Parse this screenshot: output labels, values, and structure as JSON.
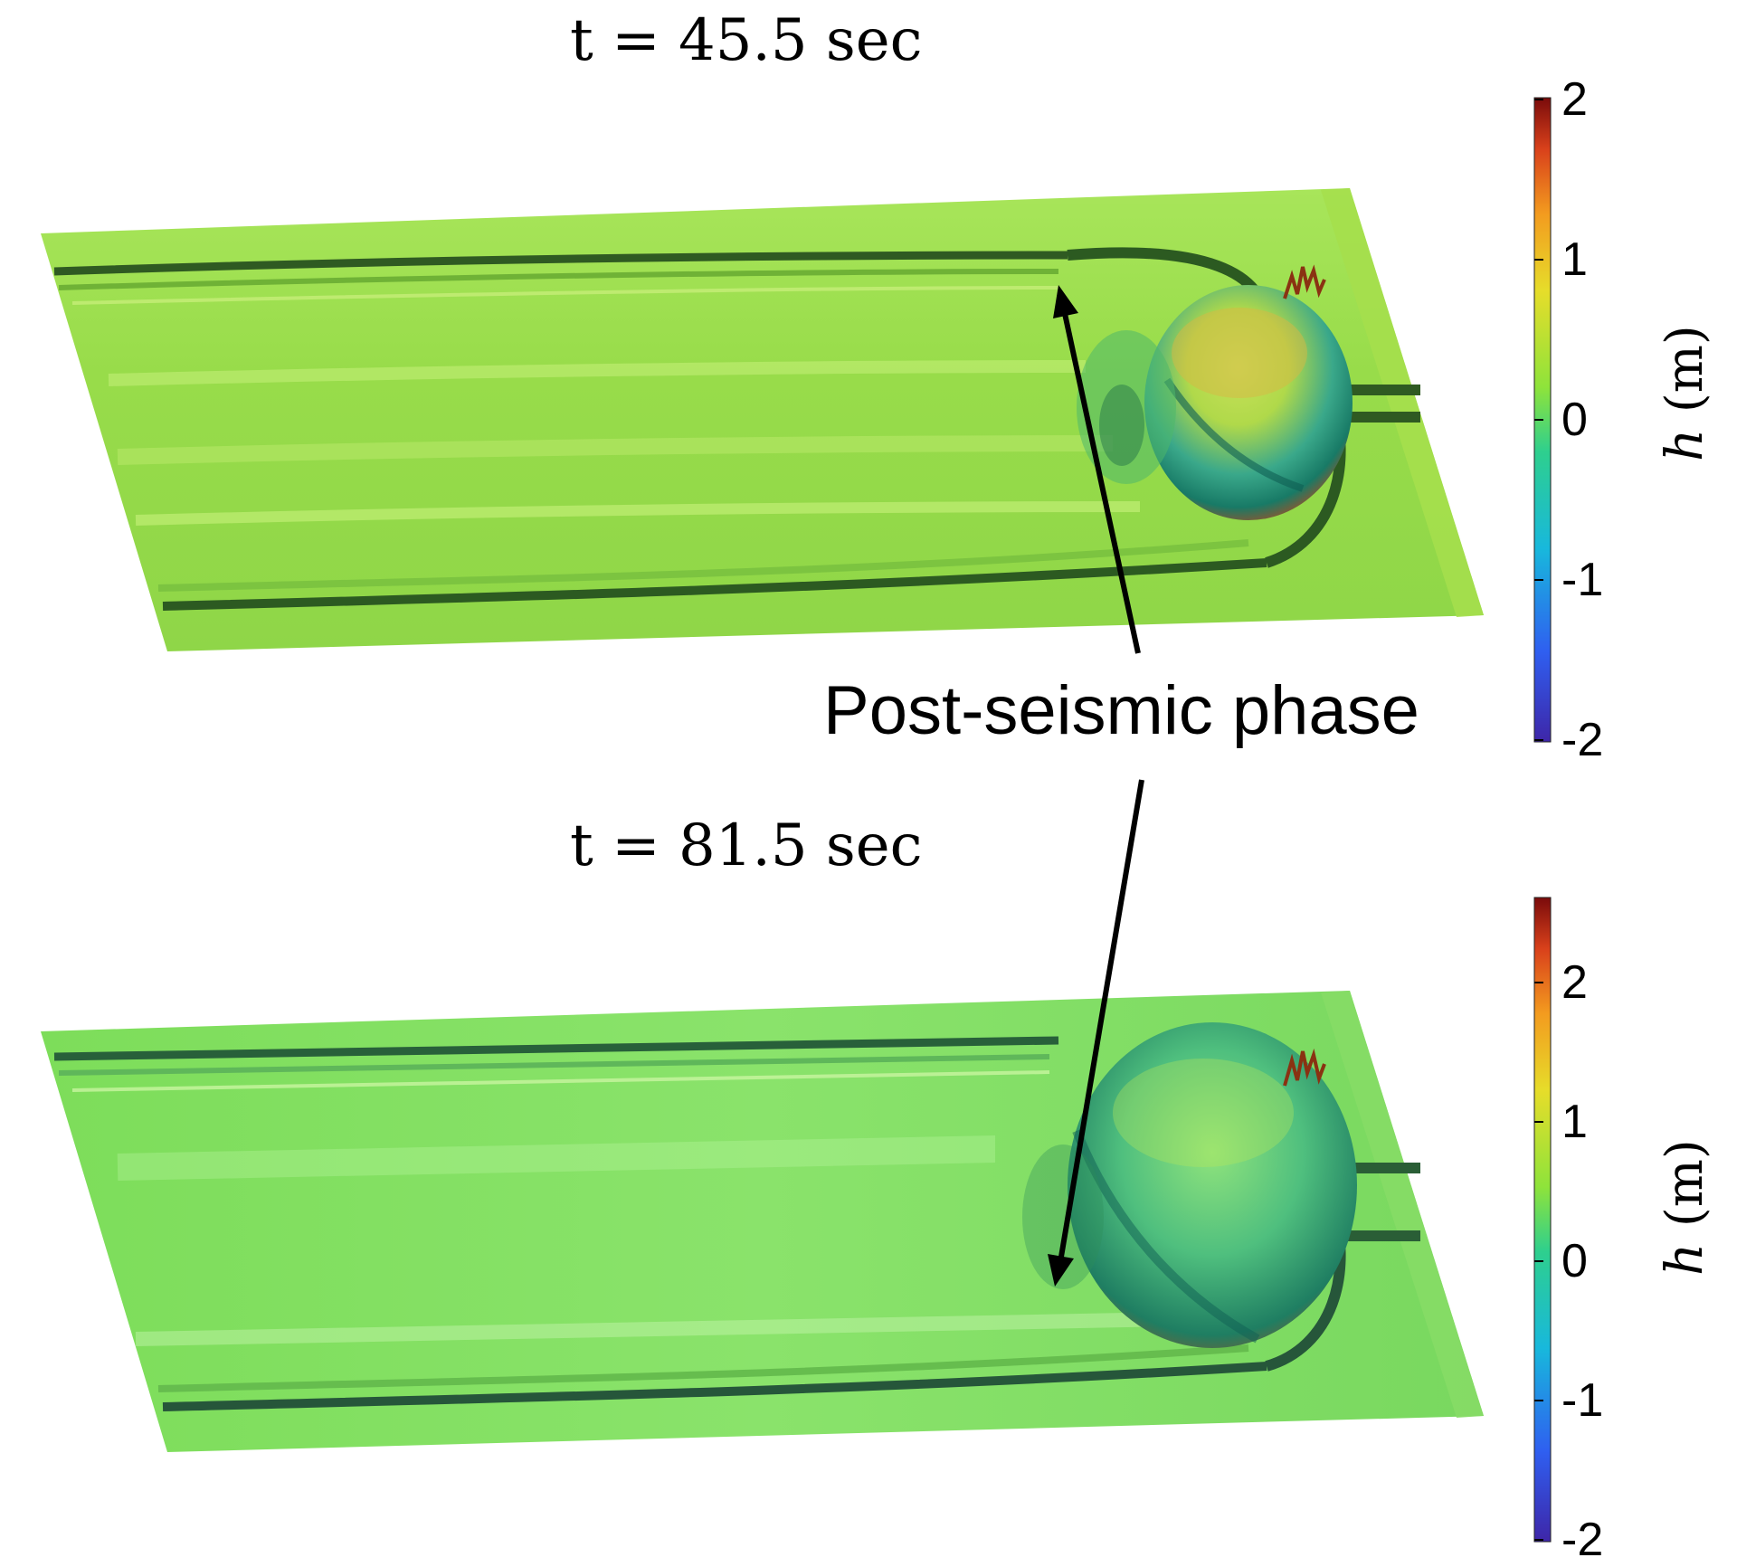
{
  "panels": [
    {
      "time_label": "t = 45.5 sec",
      "colorbar": {
        "title_symbol": "h",
        "title_unit": "(m)",
        "range": [
          -2,
          2
        ],
        "ticks": [
          "2",
          "1",
          "0",
          "-1",
          "-2"
        ]
      }
    },
    {
      "time_label": "t = 81.5 sec",
      "colorbar": {
        "title_symbol": "h",
        "title_unit": "(m)",
        "range": [
          -2,
          2.6
        ],
        "ticks": [
          "2",
          "1",
          "0",
          "-1",
          "-2"
        ]
      }
    }
  ],
  "annotation": {
    "label": "Post-seismic phase"
  },
  "colormap": [
    "#3e26a8",
    "#2f5ff0",
    "#18b8dc",
    "#2ecf8e",
    "#8ee33b",
    "#e6dd2a",
    "#f39b1f",
    "#d9411b",
    "#7a0b0b"
  ]
}
